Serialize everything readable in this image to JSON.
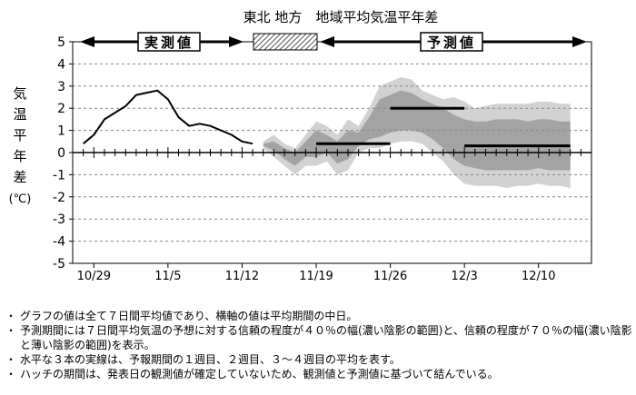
{
  "chart_data": {
    "type": "area",
    "title": "東北 地方　地域平均気温平年差",
    "ylabel": "気温平年差(℃)",
    "ylabel_chars": [
      "気",
      "温",
      "平",
      "年",
      "差",
      "(℃)"
    ],
    "ylim": [
      -5,
      5
    ],
    "yticks": [
      "5",
      "4",
      "3",
      "2",
      "1",
      "0",
      "-1",
      "-2",
      "-3",
      "-4",
      "-5"
    ],
    "x_range_days": [
      "10/27",
      "12/15"
    ],
    "xticks": [
      {
        "date": "10/29",
        "label": "10/29"
      },
      {
        "date": "11/5",
        "label": "11/5"
      },
      {
        "date": "11/12",
        "label": "11/12"
      },
      {
        "date": "11/19",
        "label": "11/19"
      },
      {
        "date": "11/26",
        "label": "11/26"
      },
      {
        "date": "12/3",
        "label": "12/3"
      },
      {
        "date": "12/10",
        "label": "12/10"
      }
    ],
    "grid": {
      "horizontal_dashed": [
        -4,
        -3,
        -2,
        -1,
        1,
        2,
        3,
        4
      ]
    },
    "period_labels": {
      "observed": "実測値",
      "forecast": "予測値"
    },
    "observed": {
      "x": [
        "10/28",
        "10/29",
        "10/30",
        "10/31",
        "11/1",
        "11/2",
        "11/3",
        "11/4",
        "11/5",
        "11/6",
        "11/7",
        "11/8",
        "11/9",
        "11/10",
        "11/11",
        "11/12",
        "11/13"
      ],
      "y": [
        0.4,
        0.8,
        1.5,
        1.8,
        2.1,
        2.6,
        2.7,
        2.8,
        2.4,
        1.6,
        1.2,
        1.3,
        1.2,
        1.0,
        0.8,
        0.5,
        0.4
      ]
    },
    "forecast_70": {
      "x": [
        "11/14",
        "11/15",
        "11/16",
        "11/17",
        "11/18",
        "11/19",
        "11/20",
        "11/21",
        "11/22",
        "11/23",
        "11/24",
        "11/25",
        "11/26",
        "11/27",
        "11/28",
        "11/29",
        "11/30",
        "12/1",
        "12/2",
        "12/3",
        "12/4",
        "12/5",
        "12/6",
        "12/7",
        "12/8",
        "12/9",
        "12/10",
        "12/11",
        "12/12",
        "12/13"
      ],
      "upper": [
        0.5,
        0.8,
        0.4,
        0.2,
        0.8,
        1.4,
        1.2,
        0.8,
        1.5,
        1.2,
        2.0,
        3.0,
        3.2,
        3.4,
        3.3,
        2.8,
        2.6,
        2.4,
        2.5,
        2.3,
        2.0,
        2.1,
        2.2,
        2.2,
        2.2,
        2.2,
        2.3,
        2.3,
        2.2,
        2.2
      ],
      "lower": [
        0.2,
        -0.2,
        -0.6,
        -1.0,
        -0.6,
        -0.6,
        -0.4,
        -1.0,
        -0.8,
        0.0,
        0.2,
        0.2,
        0.4,
        0.5,
        0.5,
        0.4,
        0.0,
        -0.4,
        -1.0,
        -1.4,
        -1.5,
        -1.5,
        -1.5,
        -1.6,
        -1.5,
        -1.5,
        -1.4,
        -1.5,
        -1.5,
        -1.6
      ]
    },
    "forecast_40": {
      "x": [
        "11/14",
        "11/15",
        "11/16",
        "11/17",
        "11/18",
        "11/19",
        "11/20",
        "11/21",
        "11/22",
        "11/23",
        "11/24",
        "11/25",
        "11/26",
        "11/27",
        "11/28",
        "11/29",
        "11/30",
        "12/1",
        "12/2",
        "12/3",
        "12/4",
        "12/5",
        "12/6",
        "12/7",
        "12/8",
        "12/9",
        "12/10",
        "12/11",
        "12/12",
        "12/13"
      ],
      "upper": [
        0.4,
        0.5,
        0.2,
        0.0,
        0.5,
        1.0,
        0.8,
        0.5,
        1.0,
        0.9,
        1.6,
        2.4,
        2.6,
        2.8,
        2.7,
        2.4,
        2.2,
        2.0,
        1.7,
        1.5,
        1.4,
        1.4,
        1.5,
        1.5,
        1.5,
        1.4,
        1.5,
        1.5,
        1.4,
        1.4
      ],
      "lower": [
        0.3,
        0.1,
        -0.3,
        -0.6,
        -0.2,
        -0.2,
        0.0,
        -0.5,
        -0.3,
        0.3,
        0.6,
        0.7,
        0.9,
        1.0,
        1.0,
        0.9,
        0.6,
        0.2,
        -0.3,
        -0.6,
        -0.7,
        -0.8,
        -0.8,
        -0.8,
        -0.8,
        -0.8,
        -0.7,
        -0.8,
        -0.8,
        -0.8
      ]
    },
    "weekly_means": [
      {
        "label": "1週目",
        "x0": "11/19",
        "x1": "11/26",
        "value": 0.4
      },
      {
        "label": "2週目",
        "x0": "11/26",
        "x1": "12/3",
        "value": 2.0
      },
      {
        "label": "3～4週目",
        "x0": "12/3",
        "x1": "12/13",
        "value": 0.3
      }
    ],
    "colors": {
      "band_70": "#d2d2d2",
      "band_40": "#a3a3a3",
      "weekly_mean_line": "#000000",
      "observed_line": "#000000"
    }
  },
  "notes": [
    "グラフの値は全て７日間平均値であり、横軸の値は平均期間の中日。",
    "予測期間には７日間平均気温の予想に対する信頼の程度が４０％の幅(濃い陰影の範囲)と、信頼の程度が７０％の幅(濃い陰影と薄い陰影の範囲)を表示。",
    "水平な３本の実線は、予報期間の１週目、２週目、３～４週目の平均を表す。",
    "ハッチの期間は、発表日の観測値が確定していないため、観測値と予測値に基づいて結んでいる。"
  ]
}
